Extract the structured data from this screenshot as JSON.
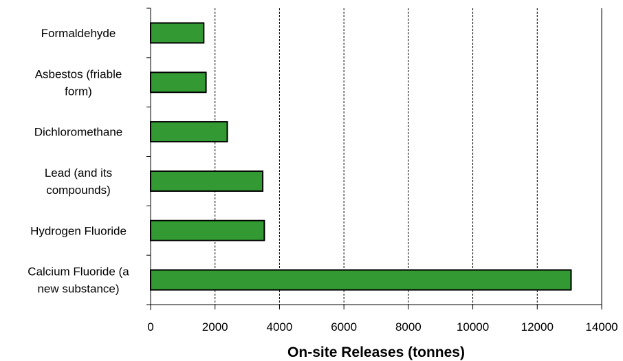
{
  "chart_data": {
    "type": "bar",
    "orientation": "horizontal",
    "categories": [
      [
        "Formaldehyde"
      ],
      [
        "Asbestos (friable",
        "form)"
      ],
      [
        "Dichloromethane"
      ],
      [
        "Lead (and its",
        "compounds)"
      ],
      [
        "Hydrogen Fluoride"
      ],
      [
        "Calcium Fluoride  (a",
        "new substance)"
      ]
    ],
    "values": [
      1650,
      1720,
      2380,
      3480,
      3530,
      13050
    ],
    "xlabel": "On-site Releases (tonnes)",
    "xlim": [
      0,
      14000
    ],
    "xticks": [
      0,
      2000,
      4000,
      6000,
      8000,
      10000,
      12000,
      14000
    ],
    "grid": "vertical dashed",
    "colors": {
      "bar_fill": "#339933",
      "bar_stroke": "#000000"
    }
  }
}
